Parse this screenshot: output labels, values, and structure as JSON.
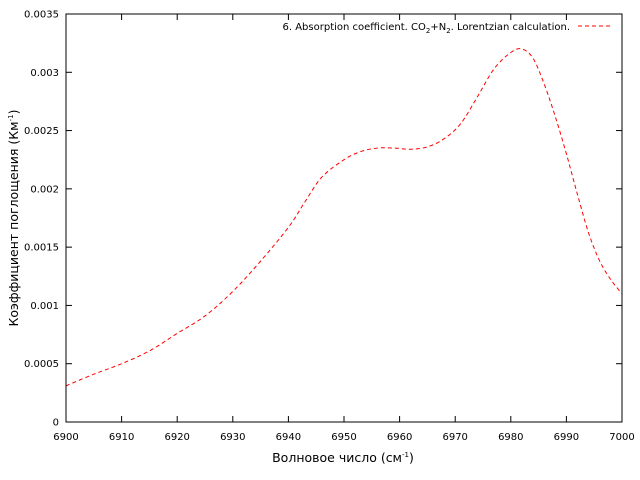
{
  "chart_data": {
    "type": "line",
    "title": "",
    "xlabel": {
      "base": "Волновое число (см",
      "sup": "-1",
      "tail": ")"
    },
    "ylabel": {
      "base": "Коэффициент поглощения (Км",
      "sup": "-1",
      "tail": ")"
    },
    "xlim": [
      6900,
      7000
    ],
    "ylim": [
      0,
      0.0035
    ],
    "xticks": [
      "6900",
      "6910",
      "6920",
      "6930",
      "6940",
      "6950",
      "6960",
      "6970",
      "6980",
      "6990",
      "7000"
    ],
    "yticks": [
      "0",
      "0.0005",
      "0.001",
      "0.0015",
      "0.002",
      "0.0025",
      "0.003",
      "0.0035"
    ],
    "grid": false,
    "legend_position": "top-right",
    "legend": {
      "prefix": "6. Absorption coefficient. CO",
      "sub1": "2",
      "mid": "+N",
      "sub2": "2",
      "suffix": ". Lorentzian calculation."
    },
    "series": [
      {
        "color": "#ff0000",
        "style": "dashed",
        "x": [
          6900,
          6905,
          6910,
          6915,
          6920,
          6925,
          6930,
          6935,
          6940,
          6943,
          6946,
          6950,
          6953,
          6956,
          6959,
          6962,
          6965,
          6968,
          6971,
          6974,
          6977,
          6980,
          6982,
          6984,
          6986,
          6988,
          6990,
          6992,
          6994,
          6996,
          6998,
          7000
        ],
        "y": [
          0.00031,
          0.00041,
          0.0005,
          0.00061,
          0.00076,
          0.00091,
          0.00112,
          0.00138,
          0.00167,
          0.00189,
          0.0021,
          0.00225,
          0.00232,
          0.00235,
          0.00235,
          0.00234,
          0.00236,
          0.00243,
          0.00256,
          0.00279,
          0.00303,
          0.00317,
          0.0032,
          0.00312,
          0.0029,
          0.00262,
          0.0023,
          0.00195,
          0.00162,
          0.00138,
          0.00122,
          0.0011
        ]
      }
    ]
  }
}
